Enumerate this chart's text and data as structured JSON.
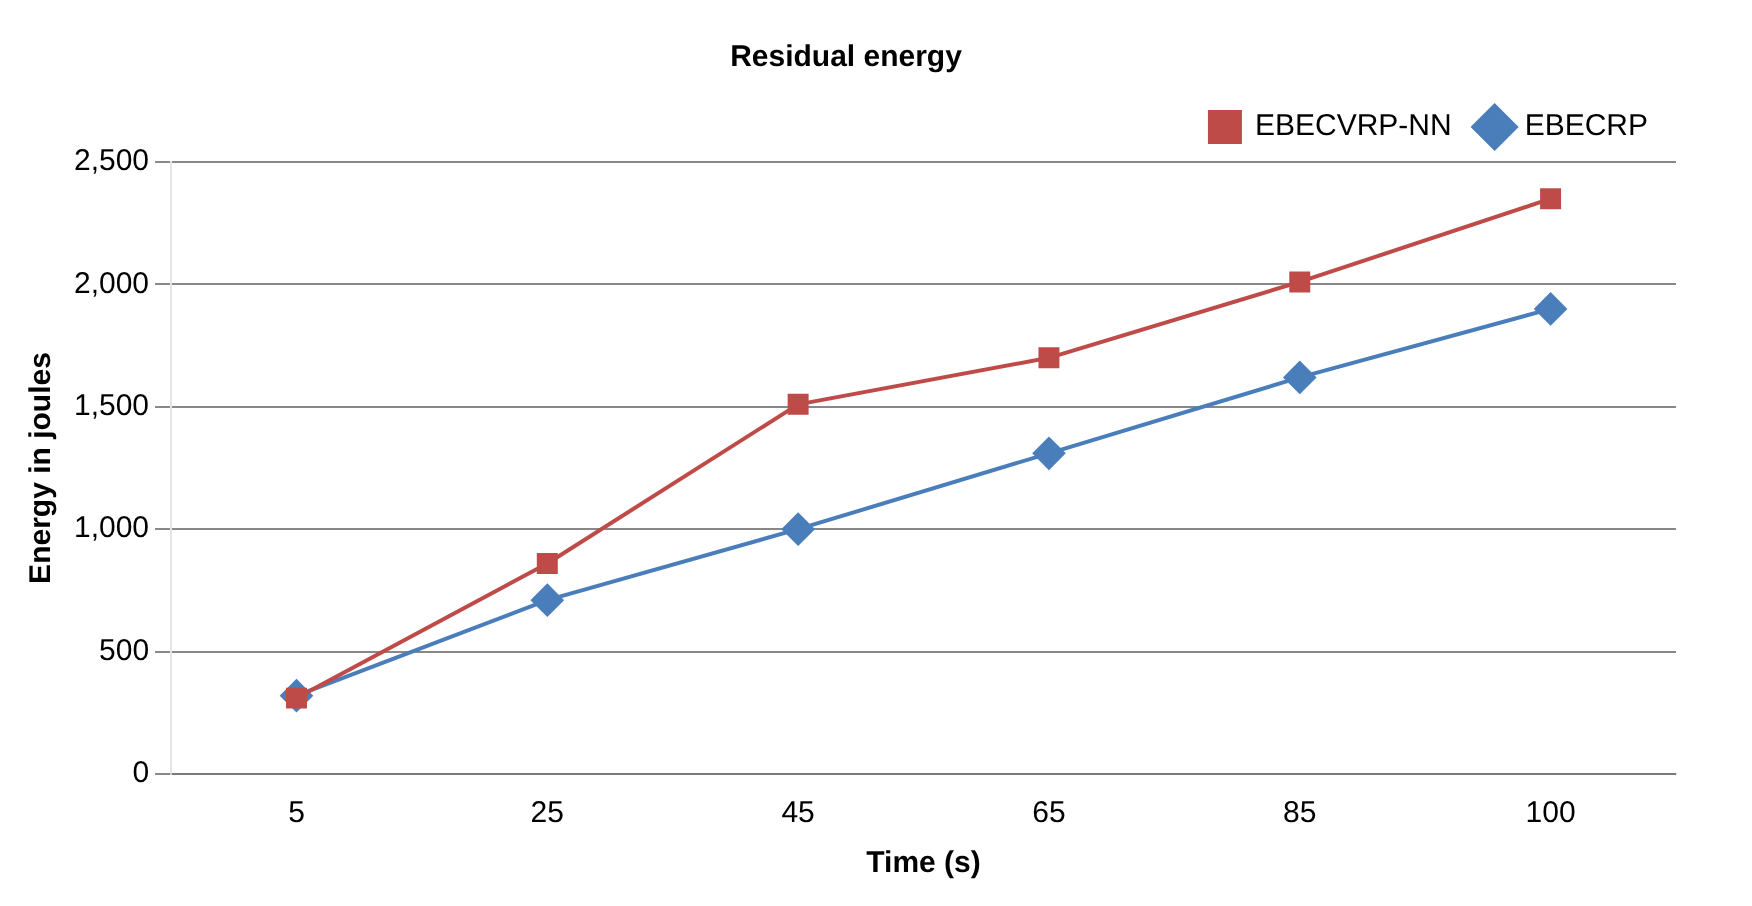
{
  "chart_data": {
    "type": "line",
    "title": "Residual energy",
    "xlabel": "Time (s)",
    "ylabel": "Energy in joules",
    "categories": [
      "5",
      "25",
      "45",
      "65",
      "85",
      "100"
    ],
    "series": [
      {
        "name": "EBECRP",
        "color": "#4a7ebb",
        "marker": "diamond",
        "values": [
          320,
          710,
          1000,
          1310,
          1620,
          1900
        ]
      },
      {
        "name": "EBECVRP-NN",
        "color": "#be4b48",
        "marker": "square",
        "values": [
          310,
          860,
          1510,
          1700,
          2010,
          2350
        ]
      }
    ],
    "ylim": [
      0,
      2500
    ],
    "yticks": [
      {
        "value": 0,
        "label": "0"
      },
      {
        "value": 500,
        "label": "500"
      },
      {
        "value": 1000,
        "label": "1,000"
      },
      {
        "value": 1500,
        "label": "1,500"
      },
      {
        "value": 2000,
        "label": "2,000"
      },
      {
        "value": 2500,
        "label": "2,500"
      }
    ],
    "grid": "y",
    "legend": "top right",
    "line_style": "solid"
  }
}
